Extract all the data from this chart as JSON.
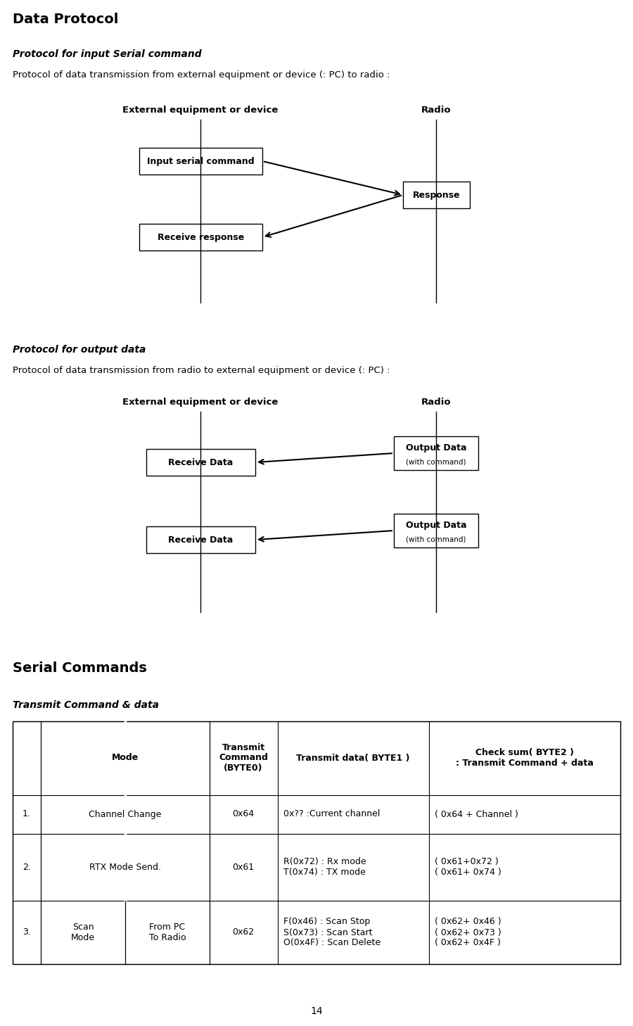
{
  "title": "Data Protocol",
  "section1_title": "Protocol for input Serial command",
  "section1_desc": "Protocol of data transmission from external equipment or device (: PC) to radio :",
  "section2_title": "Protocol for output data",
  "section2_desc": "Protocol of data transmission from radio to external equipment or device (: PC) :",
  "section3_title": "Serial Commands",
  "section4_title": "Transmit Command & data",
  "diag1_left_label": "External equipment or device",
  "diag1_right_label": "Radio",
  "diag1_box1": "Input serial command",
  "diag1_box2": "Response",
  "diag1_box3": "Receive response",
  "diag2_left_label": "External equipment or device",
  "diag2_right_label": "Radio",
  "diag2_box1": "Receive Data",
  "diag2_box2_line1": "Output Data",
  "diag2_box2_line2": "(with command)",
  "diag2_box3": "Receive Data",
  "diag2_box4_line1": "Output Data",
  "diag2_box4_line2": "(with command)",
  "page_number": "14",
  "bg_color": "#ffffff"
}
